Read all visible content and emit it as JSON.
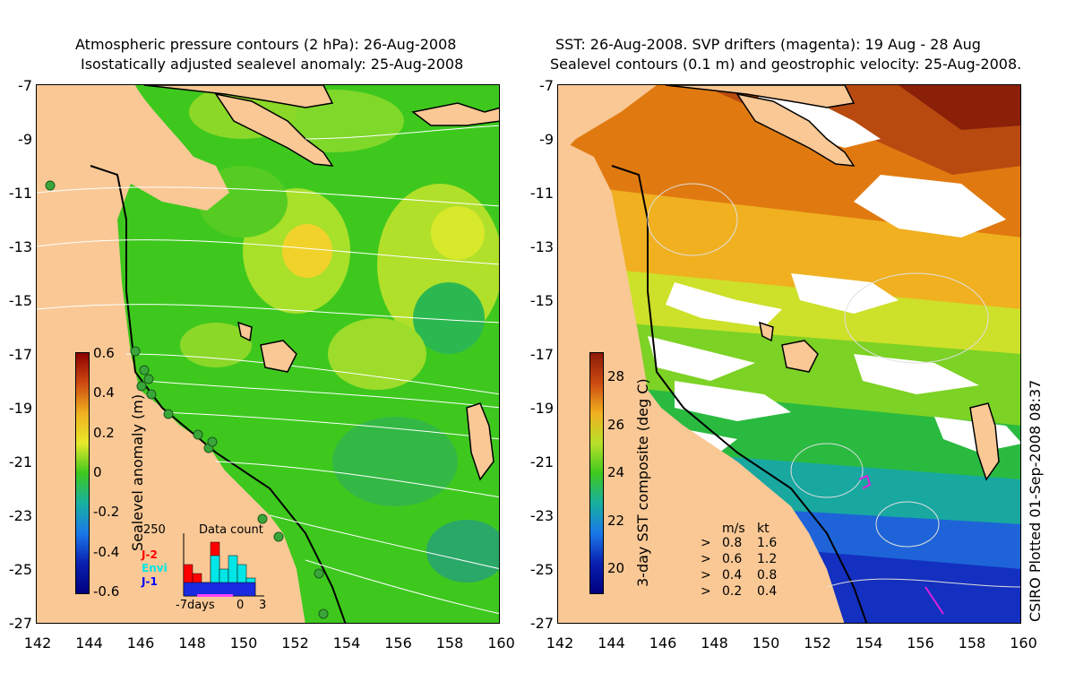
{
  "left_panel": {
    "title_line1": "Atmospheric pressure contours (2 hPa): 26-Aug-2008",
    "title_line2": "Isostatically adjusted sealevel anomaly: 25-Aug-2008",
    "colorbar_label": "Sealevel anomaly (m)",
    "colorbar_ticks": [
      "0.6",
      "0.4",
      "0.2",
      "0",
      "-0.2",
      "-0.4",
      "-0.6"
    ],
    "histogram": {
      "title": "Data count",
      "y_max_label": "250",
      "x_label": "-7days",
      "x_mid_label": "0",
      "x_end_label": "3",
      "satellites": [
        {
          "name": "J-2",
          "color": "#ff0000"
        },
        {
          "name": "Envi",
          "color": "#00e5e5"
        },
        {
          "name": "J-1",
          "color": "#0000ff"
        }
      ]
    }
  },
  "right_panel": {
    "title_line1": "SST: 26-Aug-2008. SVP drifters (magenta): 19 Aug - 28 Aug",
    "title_line2": "Sealevel contours (0.1 m) and geostrophic velocity: 25-Aug-2008.",
    "colorbar_label": "3-day SST composite (deg C)",
    "colorbar_ticks": [
      "28",
      "26",
      "24",
      "22",
      "20"
    ],
    "velocity_legend": {
      "header_ms": "m/s",
      "header_kt": "kt",
      "rows": [
        {
          "ms": "0.8",
          "kt": "1.6"
        },
        {
          "ms": "0.6",
          "kt": "1.2"
        },
        {
          "ms": "0.4",
          "kt": "0.8"
        },
        {
          "ms": "0.2",
          "kt": "0.4"
        }
      ]
    },
    "credit": "CSIRO Plotted 01-Sep-2008 08:37"
  },
  "axes": {
    "y_ticks": [
      "-7",
      "-9",
      "-11",
      "-13",
      "-15",
      "-17",
      "-19",
      "-21",
      "-23",
      "-25",
      "-27"
    ],
    "x_ticks": [
      "142",
      "144",
      "146",
      "148",
      "150",
      "152",
      "154",
      "156",
      "158",
      "160"
    ]
  },
  "colors": {
    "land": "#f9c895",
    "ocean_green": "#3ec81e",
    "anomaly_yellow": "#d8e82a"
  }
}
